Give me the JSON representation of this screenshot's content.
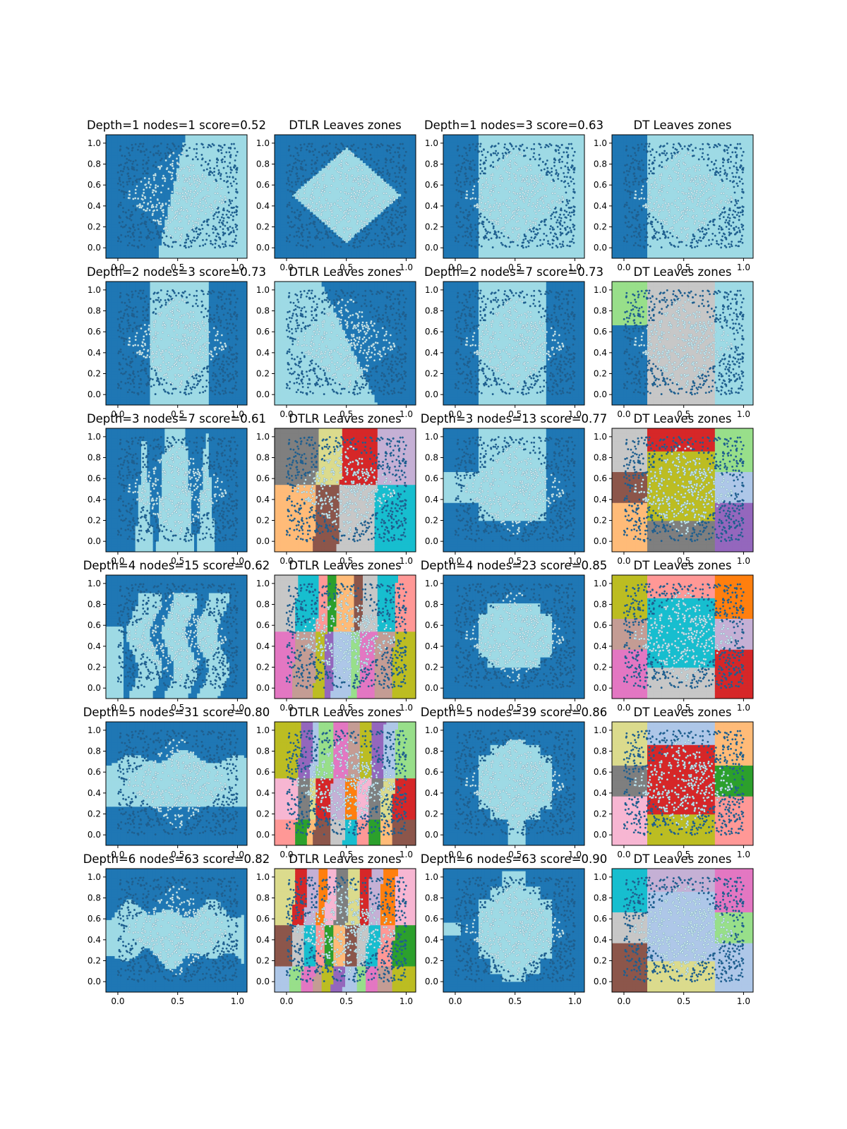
{
  "chart_data": {
    "type": "scatter",
    "layout_rows": 6,
    "layout_cols": 4,
    "colors": {
      "class0": "#1f77b4",
      "class1": "#9edae5",
      "points": "#1f5f8f",
      "points_inside": "#d0ecf0",
      "leaf_palette": [
        "#2ca02c",
        "#98df8a",
        "#ff7f0e",
        "#ffbb78",
        "#e377c2",
        "#f7b6d2",
        "#8c564b",
        "#c49c94",
        "#7f7f7f",
        "#c7c7c7",
        "#bcbd22",
        "#dbdb8d",
        "#17becf",
        "#9467bd",
        "#d62728",
        "#ff9896",
        "#aec7e8",
        "#c5b0d5"
      ]
    },
    "xlim": [
      -0.1,
      1.08
    ],
    "ylim": [
      -0.1,
      1.08
    ],
    "xticks": [
      "0.0",
      "0.5",
      "1.0"
    ],
    "yticks": [
      "0.0",
      "0.2",
      "0.4",
      "0.6",
      "0.8",
      "1.0"
    ],
    "data_region": {
      "shape": "diamond",
      "center": [
        0.5,
        0.5
      ],
      "half_width": 0.45,
      "points_per_panel": 900
    },
    "panels": [
      {
        "title": "Depth=1 nodes=1 score=0.52",
        "kind": "dtlr_pred",
        "depth": 1,
        "nodes": 1,
        "score": 0.52
      },
      {
        "title": "DTLR Leaves zones",
        "kind": "dtlr_zones",
        "depth": 1
      },
      {
        "title": "Depth=1 nodes=3 score=0.63",
        "kind": "dt_pred",
        "depth": 1,
        "nodes": 3,
        "score": 0.63
      },
      {
        "title": "DT Leaves zones",
        "kind": "dt_zones",
        "depth": 1
      },
      {
        "title": "Depth=2 nodes=3 score=0.73",
        "kind": "dtlr_pred",
        "depth": 2,
        "nodes": 3,
        "score": 0.73
      },
      {
        "title": "DTLR Leaves zones",
        "kind": "dtlr_zones",
        "depth": 2
      },
      {
        "title": "Depth=2 nodes=7 score=0.73",
        "kind": "dt_pred",
        "depth": 2,
        "nodes": 7,
        "score": 0.73
      },
      {
        "title": "DT Leaves zones",
        "kind": "dt_zones",
        "depth": 2
      },
      {
        "title": "Depth=3 nodes=7 score=0.61",
        "kind": "dtlr_pred",
        "depth": 3,
        "nodes": 7,
        "score": 0.61
      },
      {
        "title": "DTLR Leaves zones",
        "kind": "dtlr_zones",
        "depth": 3
      },
      {
        "title": "Depth=3 nodes=13 score=0.77",
        "kind": "dt_pred",
        "depth": 3,
        "nodes": 13,
        "score": 0.77
      },
      {
        "title": "DT Leaves zones",
        "kind": "dt_zones",
        "depth": 3
      },
      {
        "title": "Depth=4 nodes=15 score=0.62",
        "kind": "dtlr_pred",
        "depth": 4,
        "nodes": 15,
        "score": 0.62
      },
      {
        "title": "DTLR Leaves zones",
        "kind": "dtlr_zones",
        "depth": 4
      },
      {
        "title": "Depth=4 nodes=23 score=0.85",
        "kind": "dt_pred",
        "depth": 4,
        "nodes": 23,
        "score": 0.85
      },
      {
        "title": "DT Leaves zones",
        "kind": "dt_zones",
        "depth": 4
      },
      {
        "title": "Depth=5 nodes=31 score=0.80",
        "kind": "dtlr_pred",
        "depth": 5,
        "nodes": 31,
        "score": 0.8
      },
      {
        "title": "DTLR Leaves zones",
        "kind": "dtlr_zones",
        "depth": 5
      },
      {
        "title": "Depth=5 nodes=39 score=0.86",
        "kind": "dt_pred",
        "depth": 5,
        "nodes": 39,
        "score": 0.86
      },
      {
        "title": "DT Leaves zones",
        "kind": "dt_zones",
        "depth": 5
      },
      {
        "title": "Depth=6 nodes=63 score=0.82",
        "kind": "dtlr_pred",
        "depth": 6,
        "nodes": 63,
        "score": 0.82
      },
      {
        "title": "DTLR Leaves zones",
        "kind": "dtlr_zones",
        "depth": 6
      },
      {
        "title": "Depth=6 nodes=63 score=0.90",
        "kind": "dt_pred",
        "depth": 6,
        "nodes": 63,
        "score": 0.9
      },
      {
        "title": "DT Leaves zones",
        "kind": "dt_zones",
        "depth": 6
      }
    ]
  }
}
